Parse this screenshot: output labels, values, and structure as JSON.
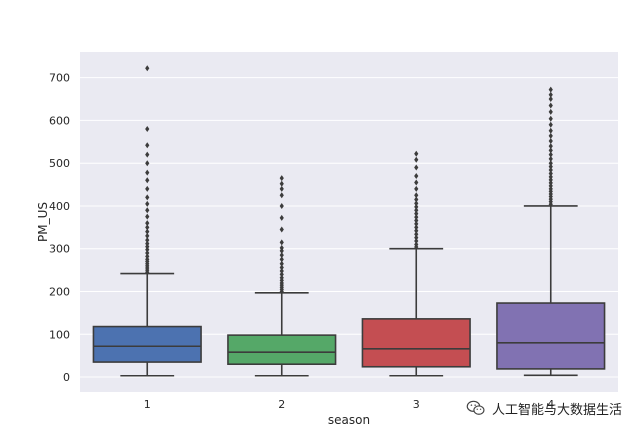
{
  "chart_data": {
    "type": "box",
    "xlabel": "season",
    "ylabel": "PM_US",
    "ylim": [
      -35,
      760
    ],
    "yticks": [
      0,
      100,
      200,
      300,
      400,
      500,
      600,
      700
    ],
    "grid": true,
    "categories": [
      "1",
      "2",
      "3",
      "4"
    ],
    "boxes": [
      {
        "category": "1",
        "color": "#4c72b0",
        "whisker_low": 3,
        "q1": 35,
        "median": 72,
        "q3": 118,
        "whisker_high": 242,
        "outliers": [
          245,
          250,
          255,
          260,
          265,
          270,
          275,
          282,
          290,
          298,
          305,
          312,
          320,
          330,
          340,
          350,
          360,
          375,
          390,
          405,
          420,
          440,
          460,
          478,
          500,
          520,
          542,
          580,
          722
        ]
      },
      {
        "category": "2",
        "color": "#55a868",
        "whisker_low": 3,
        "q1": 30,
        "median": 58,
        "q3": 98,
        "whisker_high": 197,
        "outliers": [
          200,
          205,
          210,
          215,
          220,
          226,
          232,
          240,
          248,
          256,
          265,
          275,
          285,
          295,
          302,
          315,
          345,
          372,
          400,
          425,
          440,
          452,
          465
        ]
      },
      {
        "category": "3",
        "color": "#c44e52",
        "whisker_low": 3,
        "q1": 24,
        "median": 66,
        "q3": 136,
        "whisker_high": 300,
        "outliers": [
          304,
          310,
          318,
          326,
          334,
          342,
          350,
          358,
          366,
          374,
          382,
          390,
          398,
          406,
          415,
          425,
          440,
          455,
          470,
          490,
          508,
          522
        ]
      },
      {
        "category": "4",
        "color": "#8172b2",
        "whisker_low": 4,
        "q1": 19,
        "median": 80,
        "q3": 173,
        "whisker_high": 400,
        "outliers": [
          404,
          410,
          416,
          422,
          428,
          434,
          440,
          447,
          454,
          461,
          468,
          476,
          484,
          492,
          500,
          510,
          520,
          530,
          540,
          552,
          564,
          576,
          590,
          604,
          620,
          635,
          650,
          660,
          672
        ]
      }
    ]
  },
  "watermark": {
    "text": "人工智能与大数据生活",
    "icon": "wechat-icon"
  }
}
